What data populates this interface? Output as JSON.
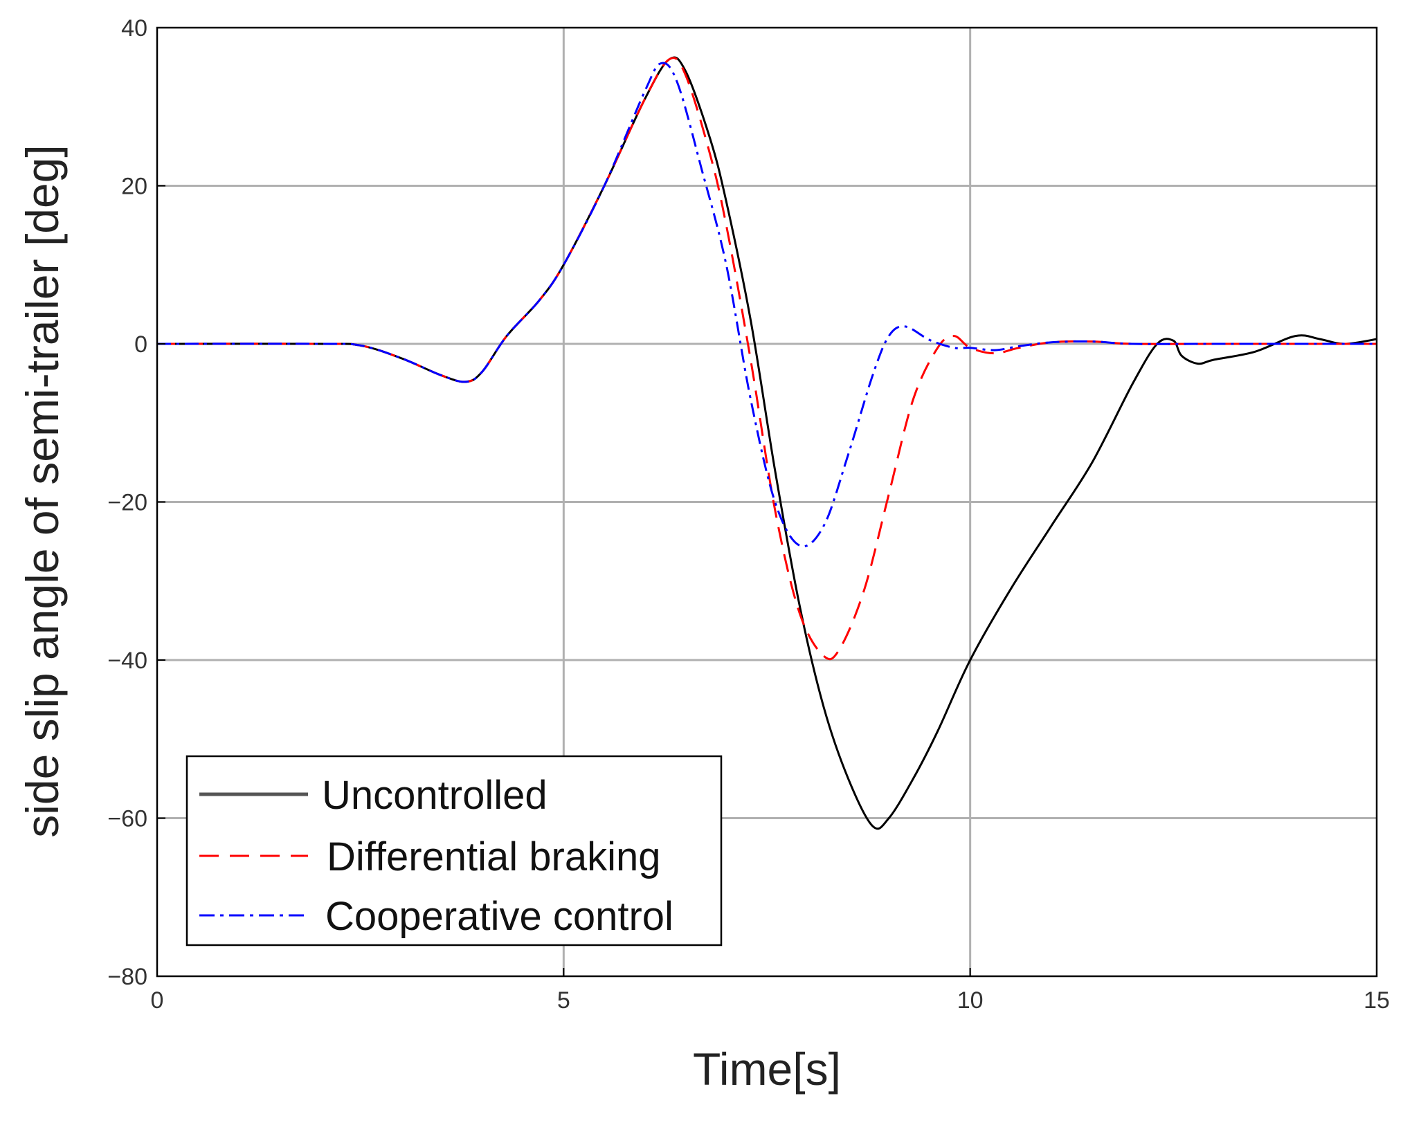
{
  "chart_data": {
    "type": "line",
    "title": "",
    "xlabel": "Time[s]",
    "ylabel": "side slip angle of semi-trailer [deg]",
    "xlim": [
      0,
      15
    ],
    "ylim": [
      -80,
      40
    ],
    "xticks": [
      0,
      5,
      10,
      15
    ],
    "yticks": [
      40,
      20,
      0,
      -20,
      -40,
      -60,
      -80
    ],
    "xtick_labels": [
      "0",
      "5",
      "10",
      "15"
    ],
    "ytick_labels": [
      "40",
      "20",
      "0",
      "−20",
      "−40",
      "−60",
      "−80"
    ],
    "grid": true,
    "legend_position": "bottom-left",
    "series": [
      {
        "name": "Uncontrolled",
        "color": "#000000",
        "dash": "solid",
        "x": [
          0,
          2.0,
          2.5,
          3.0,
          3.5,
          3.8,
          4.0,
          4.3,
          4.7,
          5.0,
          5.5,
          6.0,
          6.3,
          6.5,
          6.8,
          7.0,
          7.3,
          7.6,
          7.9,
          8.2,
          8.5,
          8.8,
          9.0,
          9.3,
          9.6,
          10.0,
          10.5,
          11.0,
          11.5,
          12.0,
          12.3,
          12.5,
          12.6,
          12.8,
          13.0,
          13.5,
          14.0,
          14.3,
          14.6,
          15.0
        ],
        "y": [
          0,
          0,
          -0.2,
          -1.8,
          -4.0,
          -4.8,
          -3.5,
          1.0,
          5.5,
          10.0,
          20.0,
          31.0,
          36.0,
          34.5,
          26.0,
          18.0,
          3.0,
          -16.0,
          -33.0,
          -46.0,
          -55.0,
          -61.0,
          -60.0,
          -55.0,
          -49.0,
          -40.0,
          -31.0,
          -23.0,
          -15.0,
          -5.0,
          0.0,
          0.4,
          -1.5,
          -2.5,
          -2.0,
          -1.0,
          1.0,
          0.6,
          0.0,
          0.6
        ]
      },
      {
        "name": "Differential braking",
        "color": "#ff0000",
        "dash": "dashed",
        "x": [
          0,
          2.0,
          2.5,
          3.0,
          3.5,
          3.8,
          4.0,
          4.3,
          4.7,
          5.0,
          5.5,
          6.0,
          6.3,
          6.5,
          6.8,
          7.0,
          7.3,
          7.6,
          7.9,
          8.2,
          8.4,
          8.7,
          9.0,
          9.3,
          9.6,
          9.8,
          10.0,
          10.3,
          10.6,
          11.0,
          11.5,
          12.0,
          13.0,
          14.0,
          15.0
        ],
        "y": [
          0,
          0,
          -0.2,
          -1.8,
          -4.0,
          -4.8,
          -3.5,
          1.0,
          5.5,
          10.0,
          20.0,
          31.0,
          36.0,
          34.0,
          24.0,
          15.0,
          -2.0,
          -21.0,
          -34.0,
          -39.5,
          -38.5,
          -31.0,
          -19.0,
          -7.0,
          -0.5,
          1.0,
          -0.5,
          -1.2,
          -0.5,
          0.2,
          0.3,
          0.0,
          0.0,
          0.0,
          0.0
        ]
      },
      {
        "name": "Cooperative control",
        "color": "#0000ff",
        "dash": "dashdot",
        "x": [
          0,
          2.0,
          2.5,
          3.0,
          3.5,
          3.8,
          4.0,
          4.3,
          4.7,
          5.0,
          5.5,
          6.0,
          6.2,
          6.4,
          6.7,
          7.0,
          7.3,
          7.6,
          7.9,
          8.2,
          8.5,
          8.8,
          9.0,
          9.2,
          9.5,
          9.8,
          10.0,
          10.3,
          10.6,
          11.0,
          11.5,
          12.0,
          13.0,
          14.0,
          15.0
        ],
        "y": [
          0,
          0,
          -0.2,
          -1.8,
          -4.0,
          -4.8,
          -3.5,
          1.0,
          5.5,
          10.0,
          20.0,
          32.0,
          35.5,
          33.0,
          22.0,
          10.0,
          -7.0,
          -20.0,
          -25.5,
          -23.0,
          -14.0,
          -4.0,
          1.0,
          2.2,
          0.5,
          -0.5,
          -0.5,
          -0.8,
          -0.3,
          0.2,
          0.3,
          0.0,
          0.0,
          0.0,
          0.0
        ]
      }
    ]
  }
}
